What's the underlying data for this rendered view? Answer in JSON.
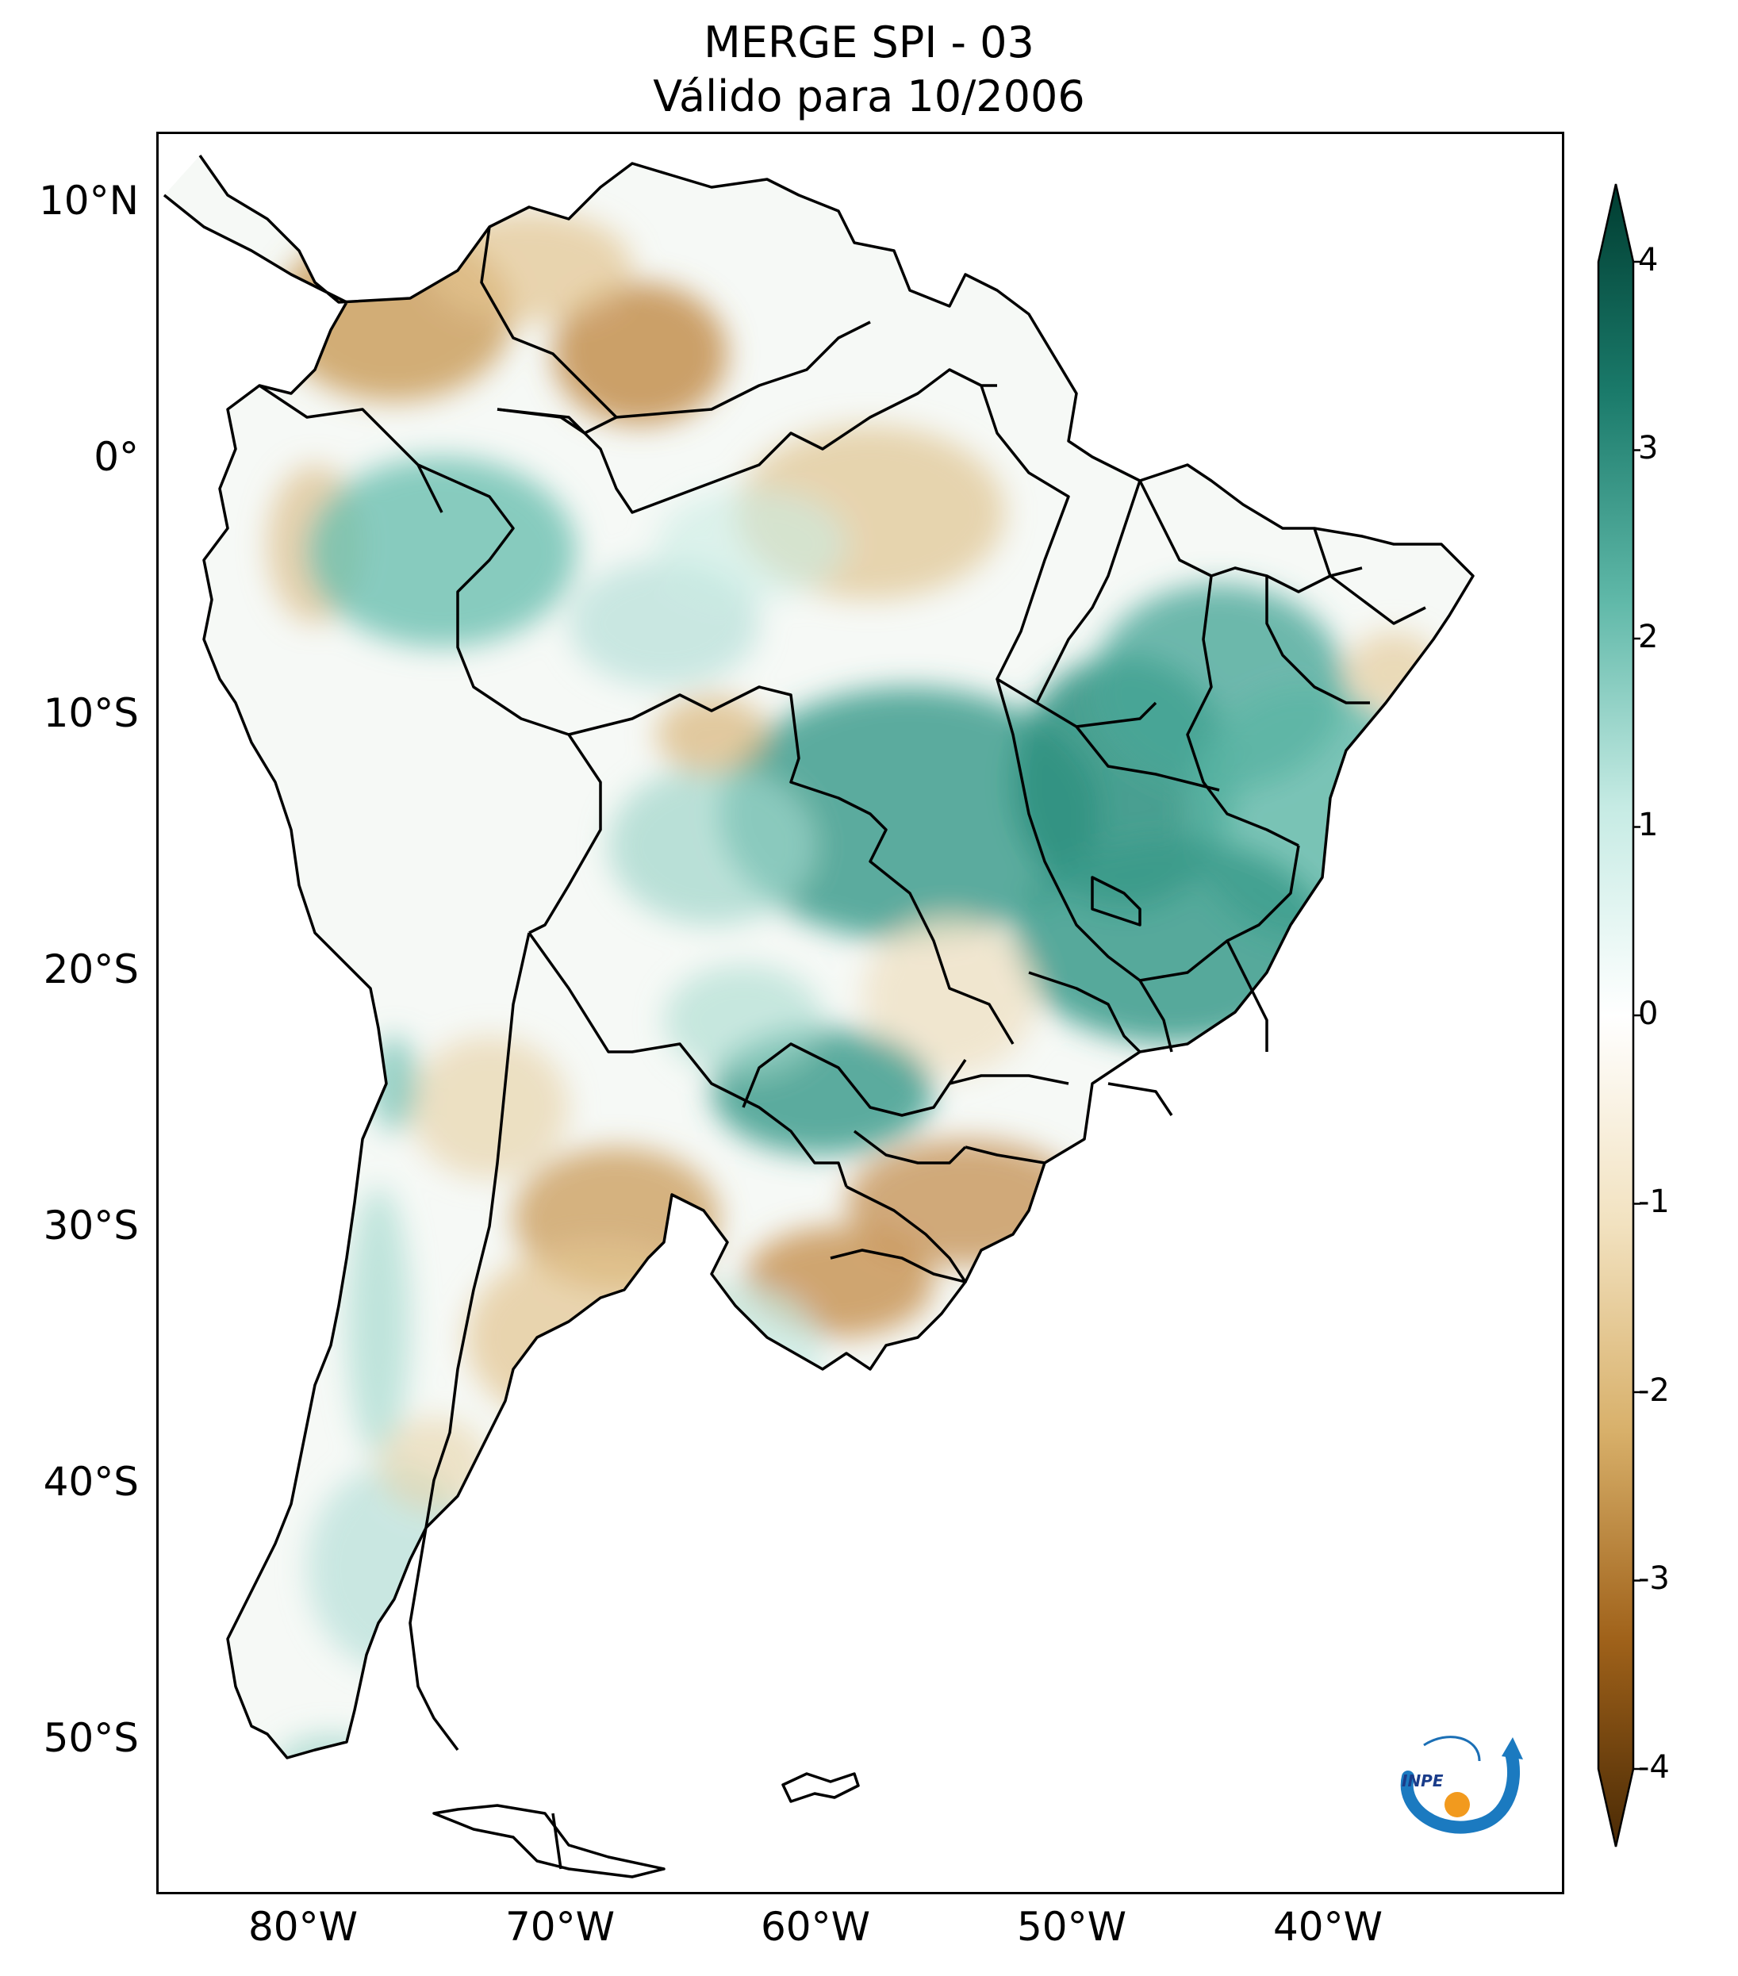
{
  "title": {
    "line1": "MERGE   SPI - 03",
    "line2": "Válido para 10/2006"
  },
  "axes": {
    "lat_labels": [
      "10°N",
      "0°",
      "10°S",
      "20°S",
      "30°S",
      "40°S",
      "50°S"
    ],
    "lon_labels": [
      "80°W",
      "70°W",
      "60°W",
      "50°W",
      "40°W"
    ],
    "lat_range": [
      -56,
      13
    ],
    "lon_range": [
      -85,
      -30
    ]
  },
  "colorbar": {
    "ticks": [
      "4",
      "3",
      "2",
      "1",
      "0",
      "-1",
      "-2",
      "-3",
      "-4"
    ],
    "range": [
      -4,
      4
    ],
    "colors": {
      "dry_extreme": "#4a2a05",
      "dry_strong": "#a0621a",
      "dry_moderate": "#d8b06a",
      "dry_mild": "#f2e2c0",
      "neutral": "#ffffff",
      "wet_mild": "#c6ebe4",
      "wet_moderate": "#5fb8a8",
      "wet_strong": "#1a7a6a",
      "wet_extreme": "#003c30"
    }
  },
  "logo": {
    "text": "INPE"
  }
}
